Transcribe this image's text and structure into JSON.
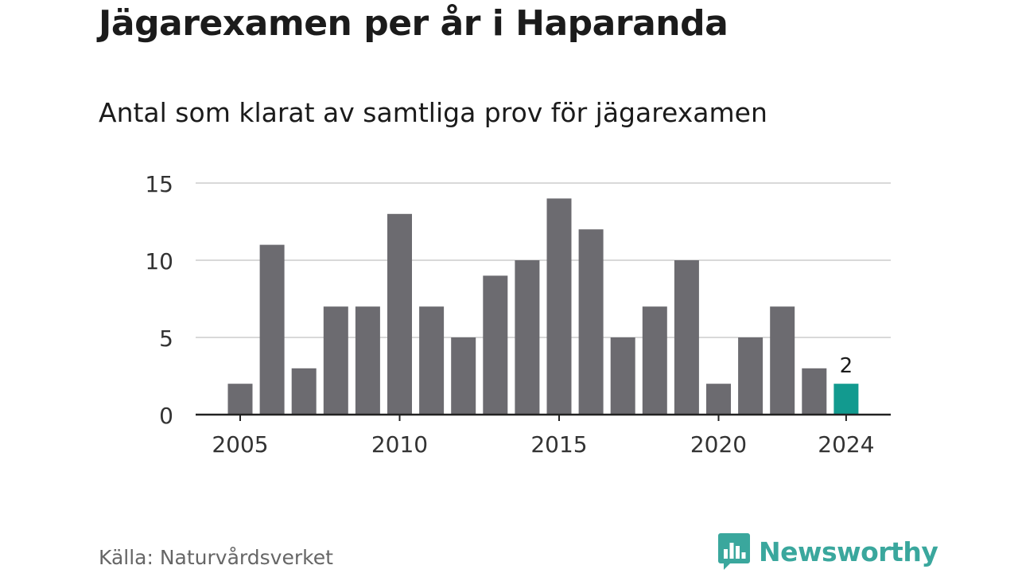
{
  "title": "Jägarexamen per år i Haparanda",
  "subtitle": "Antal som klarat av samtliga prov för jägarexamen",
  "source": "Källa: Naturvårdsverket",
  "brand": {
    "name": "Newsworthy",
    "icon": "newsworthy-chart-bubble-icon",
    "color": "#3aa79d"
  },
  "colors": {
    "bar": "#6c6b70",
    "highlight": "#129a8f",
    "grid": "#d9d9d9",
    "axis": "#222222",
    "text": "#333333"
  },
  "chart_data": {
    "type": "bar",
    "categories": [
      2005,
      2006,
      2007,
      2008,
      2009,
      2010,
      2011,
      2012,
      2013,
      2014,
      2015,
      2016,
      2017,
      2018,
      2019,
      2020,
      2021,
      2022,
      2023,
      2024
    ],
    "values": [
      2,
      11,
      3,
      7,
      7,
      13,
      7,
      5,
      9,
      10,
      14,
      12,
      5,
      7,
      10,
      2,
      5,
      7,
      3,
      2
    ],
    "highlight_category": 2024,
    "highlight_label": "2",
    "x_ticks": [
      2005,
      2010,
      2015,
      2020,
      2024
    ],
    "y_ticks": [
      0,
      5,
      10,
      15
    ],
    "ylim": [
      0,
      15
    ],
    "grid": true,
    "xlabel": "",
    "ylabel": ""
  }
}
